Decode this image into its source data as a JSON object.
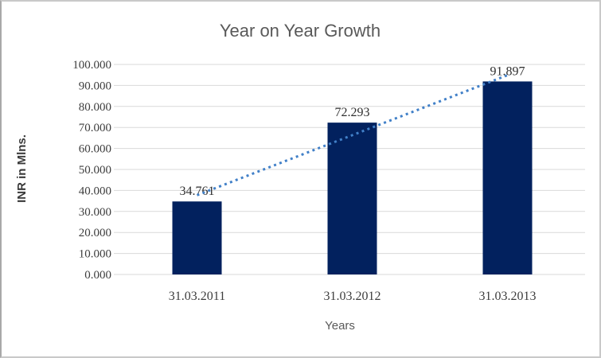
{
  "chart_data": {
    "type": "bar",
    "title": "Year on Year Growth",
    "xlabel": "Years",
    "ylabel": "INR in Mlns.",
    "categories": [
      "31.03.2011",
      "31.03.2012",
      "31.03.2013"
    ],
    "values": [
      34.761,
      72.293,
      91.897
    ],
    "data_labels": [
      "34.761",
      "72.293",
      "91.897"
    ],
    "ylim": [
      0,
      100
    ],
    "ytick_step": 10,
    "ytick_labels": [
      "0.000",
      "10.000",
      "20.000",
      "30.000",
      "40.000",
      "50.000",
      "60.000",
      "70.000",
      "80.000",
      "90.000",
      "100.000"
    ],
    "grid": true,
    "legend": "none",
    "trendline": {
      "type": "linear",
      "style": "dotted"
    },
    "colors": {
      "bar": "#02215e",
      "trendline": "#4180c8",
      "gridline": "#d9d9d9",
      "title_text": "#595959",
      "tick_text": "#3d3d3d"
    }
  }
}
